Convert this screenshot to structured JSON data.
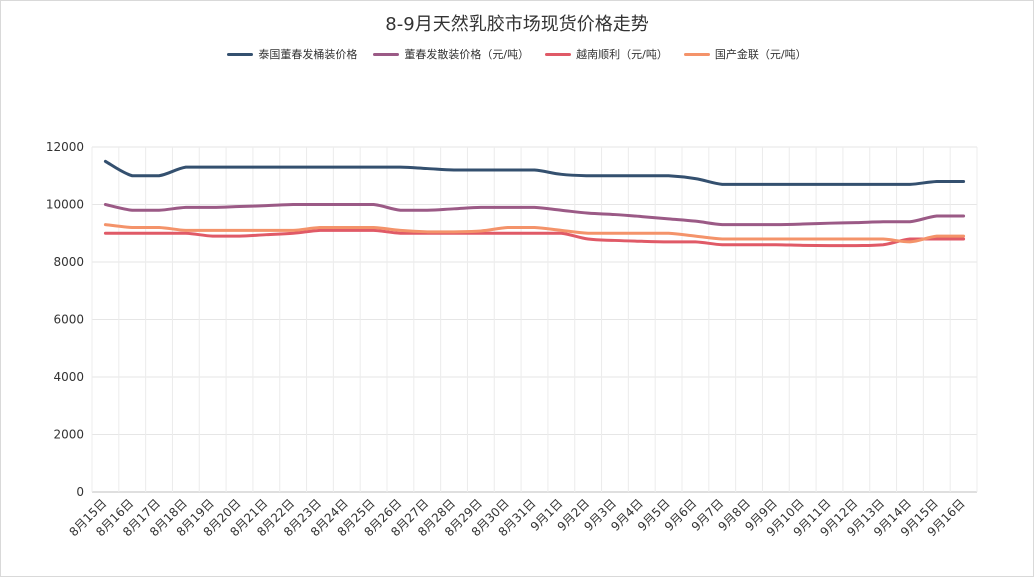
{
  "chart_data": {
    "type": "line",
    "title": "8-9月天然乳胶市场现货价格走势",
    "xlabel": "",
    "ylabel": "",
    "ylim": [
      0,
      12000
    ],
    "yticks": [
      0,
      2000,
      4000,
      6000,
      8000,
      10000,
      12000
    ],
    "grid": true,
    "legend_position": "top",
    "categories": [
      "8月15日",
      "8月16日",
      "8月17日",
      "8月18日",
      "8月19日",
      "8月20日",
      "8月21日",
      "8月22日",
      "8月23日",
      "8月24日",
      "8月25日",
      "8月26日",
      "8月27日",
      "8月28日",
      "8月29日",
      "8月30日",
      "8月31日",
      "9月1日",
      "9月2日",
      "9月3日",
      "9月4日",
      "9月5日",
      "9月6日",
      "9月7日",
      "9月8日",
      "9月9日",
      "9月10日",
      "9月11日",
      "9月12日",
      "9月13日",
      "9月14日",
      "9月15日",
      "9月16日"
    ],
    "series": [
      {
        "name": "泰国董春发桶装价格",
        "color": "#34506f",
        "values": [
          11500,
          11000,
          11000,
          11300,
          11300,
          11300,
          11300,
          11300,
          11300,
          11300,
          11300,
          11300,
          11250,
          11200,
          11200,
          11200,
          11200,
          11050,
          11000,
          11000,
          11000,
          11000,
          10900,
          10700,
          10700,
          10700,
          10700,
          10700,
          10700,
          10700,
          10700,
          10800,
          10800
        ]
      },
      {
        "name": "董春发散装价格（元/吨）",
        "color": "#9b5a86",
        "values": [
          10000,
          9800,
          9800,
          9900,
          9900,
          9930,
          9960,
          10000,
          10000,
          10000,
          10000,
          9800,
          9800,
          9850,
          9900,
          9900,
          9900,
          9800,
          9700,
          9650,
          9580,
          9500,
          9420,
          9300,
          9300,
          9300,
          9320,
          9350,
          9370,
          9400,
          9400,
          9600,
          9600
        ]
      },
      {
        "name": "越南顺利（元/吨）",
        "color": "#e05a67",
        "values": [
          9000,
          9000,
          9000,
          9000,
          8900,
          8900,
          8950,
          9000,
          9100,
          9100,
          9100,
          9000,
          9000,
          9000,
          9000,
          9000,
          9000,
          9000,
          8800,
          8750,
          8720,
          8700,
          8700,
          8600,
          8600,
          8600,
          8580,
          8570,
          8570,
          8600,
          8800,
          8800,
          8800
        ]
      },
      {
        "name": "国产金联（元/吨）",
        "color": "#f4936a",
        "values": [
          9300,
          9200,
          9200,
          9100,
          9100,
          9100,
          9100,
          9100,
          9200,
          9200,
          9200,
          9100,
          9050,
          9050,
          9080,
          9200,
          9200,
          9100,
          9000,
          9000,
          9000,
          9000,
          8900,
          8800,
          8800,
          8800,
          8800,
          8800,
          8800,
          8800,
          8700,
          8900,
          8900
        ]
      }
    ]
  }
}
